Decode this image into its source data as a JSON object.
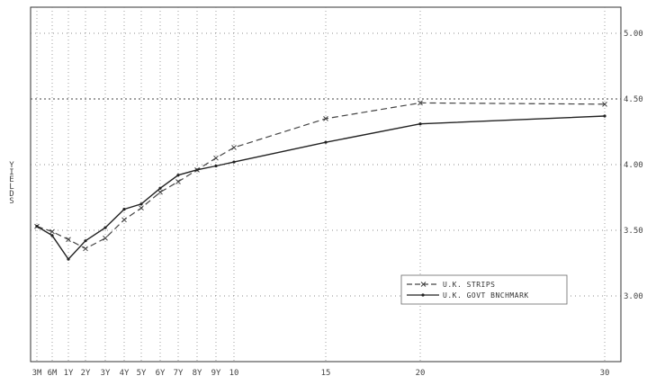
{
  "chart_data": {
    "type": "line",
    "title": "",
    "xlabel": "",
    "ylabel": "YIELDS",
    "x_tick_labels": [
      "3M",
      "6M",
      "1Y",
      "2Y",
      "3Y",
      "4Y",
      "5Y",
      "6Y",
      "7Y",
      "8Y",
      "9Y",
      "10",
      "15",
      "20",
      "30"
    ],
    "y_tick_labels": [
      "3.00",
      "3.50",
      "4.00",
      "4.50",
      "5.00"
    ],
    "ylim": [
      2.5,
      5.0
    ],
    "grid": true,
    "legend_position": "lower-right",
    "series": [
      {
        "name": "U.K. STRIPS",
        "style": "dashed",
        "color": "#444444",
        "x": [
          "3M",
          "6M",
          "1Y",
          "2Y",
          "3Y",
          "4Y",
          "5Y",
          "6Y",
          "7Y",
          "8Y",
          "9Y",
          "10",
          "15",
          "20",
          "30"
        ],
        "values": [
          3.53,
          3.49,
          3.43,
          3.36,
          3.44,
          3.58,
          3.67,
          3.79,
          3.87,
          3.96,
          4.05,
          4.13,
          4.35,
          4.47,
          4.46
        ]
      },
      {
        "name": "U.K. GOVT BNCHMARK",
        "style": "solid",
        "color": "#222222",
        "x": [
          "3M",
          "6M",
          "1Y",
          "2Y",
          "3Y",
          "4Y",
          "5Y",
          "6Y",
          "7Y",
          "8Y",
          "9Y",
          "10",
          "15",
          "20",
          "30"
        ],
        "values": [
          3.53,
          3.46,
          3.28,
          3.42,
          3.52,
          3.66,
          3.7,
          3.82,
          3.92,
          3.96,
          3.99,
          4.02,
          4.17,
          4.31,
          4.37
        ]
      }
    ]
  }
}
